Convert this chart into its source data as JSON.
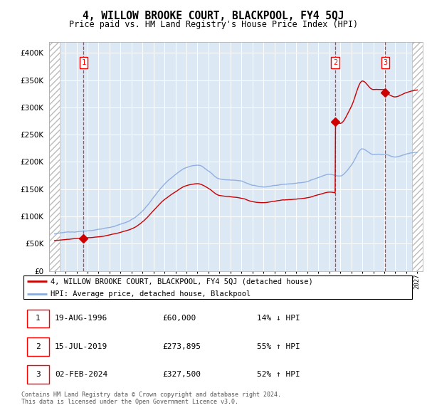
{
  "title": "4, WILLOW BROOKE COURT, BLACKPOOL, FY4 5QJ",
  "subtitle": "Price paid vs. HM Land Registry's House Price Index (HPI)",
  "sale_dates": [
    "1996-08-19",
    "2019-07-15",
    "2024-02-02"
  ],
  "sale_prices": [
    60000,
    273895,
    327500
  ],
  "sale_labels": [
    "1",
    "2",
    "3"
  ],
  "legend_line1": "4, WILLOW BROOKE COURT, BLACKPOOL, FY4 5QJ (detached house)",
  "legend_line2": "HPI: Average price, detached house, Blackpool",
  "table_rows": [
    [
      "1",
      "19-AUG-1996",
      "£60,000",
      "14% ↓ HPI"
    ],
    [
      "2",
      "15-JUL-2019",
      "£273,895",
      "55% ↑ HPI"
    ],
    [
      "3",
      "02-FEB-2024",
      "£327,500",
      "52% ↑ HPI"
    ]
  ],
  "footer": "Contains HM Land Registry data © Crown copyright and database right 2024.\nThis data is licensed under the Open Government Licence v3.0.",
  "sale_line_color": "#cc0000",
  "hpi_line_color": "#88aadd",
  "chart_bg": "#dde8f5",
  "hatch_color": "#c0c0c0",
  "ylim": [
    0,
    420000
  ],
  "yticks": [
    0,
    50000,
    100000,
    150000,
    200000,
    250000,
    300000,
    350000,
    400000
  ],
  "xmin": 1994,
  "xmax": 2027,
  "hpi_control_years": [
    1994,
    1995,
    1996,
    1997,
    1998,
    1999,
    2000,
    2001,
    2002,
    2003,
    2004,
    2005,
    2006,
    2007,
    2008,
    2009,
    2010,
    2011,
    2012,
    2013,
    2014,
    2015,
    2016,
    2017,
    2018,
    2019,
    2020,
    2021,
    2022,
    2023,
    2024,
    2025,
    2026,
    2027
  ],
  "hpi_control_vals": [
    68000,
    70000,
    72000,
    74000,
    76000,
    80000,
    86000,
    94000,
    110000,
    135000,
    160000,
    178000,
    192000,
    196000,
    185000,
    170000,
    168000,
    165000,
    158000,
    155000,
    158000,
    160000,
    162000,
    165000,
    172000,
    178000,
    175000,
    195000,
    225000,
    215000,
    215000,
    210000,
    215000,
    218000
  ],
  "sale1_year": 1996.633,
  "sale2_year": 2019.542,
  "sale3_year": 2024.085
}
